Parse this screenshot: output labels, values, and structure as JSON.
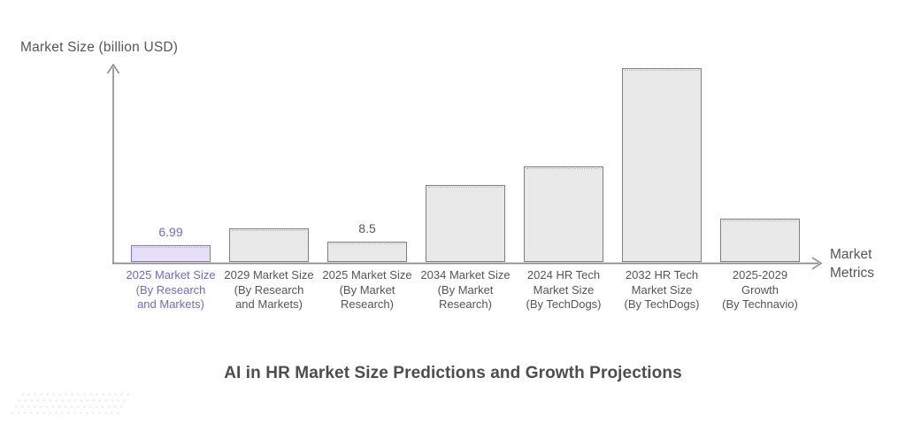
{
  "colors": {
    "axis": "#8a8a8a",
    "text": "#555555",
    "title_text": "#4d4d4d",
    "bar_fill": "#e9e9e9",
    "bar_border": "#7f7f7f",
    "highlight_fill": "#e5dffa",
    "highlight_border": "#8273de",
    "highlight_text": "#7467d4"
  },
  "chart_data": {
    "type": "bar",
    "title": "AI in HR Market Size Predictions and Growth Projections",
    "ylabel": "Market Size (billion USD)",
    "xlabel": "Market Metrics",
    "ylim": [
      0,
      90
    ],
    "grid": false,
    "legend": null,
    "categories": [
      "2025 Market Size (By Research and Markets)",
      "2029 Market Size (By Research and Markets)",
      "2025 Market Size (By Market Research)",
      "2034 Market Size (By Market Research)",
      "2024 HR Tech Market Size (By TechDogs)",
      "2032 HR Tech Market Size (By TechDogs)",
      "2025-2029 Growth (By Technavio)"
    ],
    "bars": [
      {
        "label": "2025 Market Size",
        "source": "(By Research and Markets)",
        "value": 6.99,
        "value_label": "6.99",
        "value_position": "above",
        "highlighted": true
      },
      {
        "label": "2029 Market Size",
        "source": "(By Research and Markets)",
        "value": 14.08,
        "value_label": "14.08",
        "value_position": "inside",
        "highlighted": false
      },
      {
        "label": "2025 Market Size",
        "source": "(By Market Research)",
        "value": 8.5,
        "value_label": "8.5",
        "value_position": "above",
        "highlighted": false
      },
      {
        "label": "2034 Market Size",
        "source": "(By Market Research)",
        "value": 32.5,
        "value_label": "32.5",
        "value_position": "inside",
        "highlighted": false
      },
      {
        "label": "2024 HR Tech Market Size",
        "source": "(By TechDogs)",
        "value": 40.45,
        "value_label": "40.45",
        "value_position": "inside",
        "highlighted": false
      },
      {
        "label": "2032 HR Tech Market Size",
        "source": "(By TechDogs)",
        "value": 81.84,
        "value_label": "81.84",
        "value_position": "inside",
        "highlighted": false
      },
      {
        "label": "2025-2029 Growth",
        "source": "(By Technavio)",
        "value": 18.31,
        "value_label": "18.31",
        "value_position": "inside",
        "highlighted": false
      }
    ]
  }
}
